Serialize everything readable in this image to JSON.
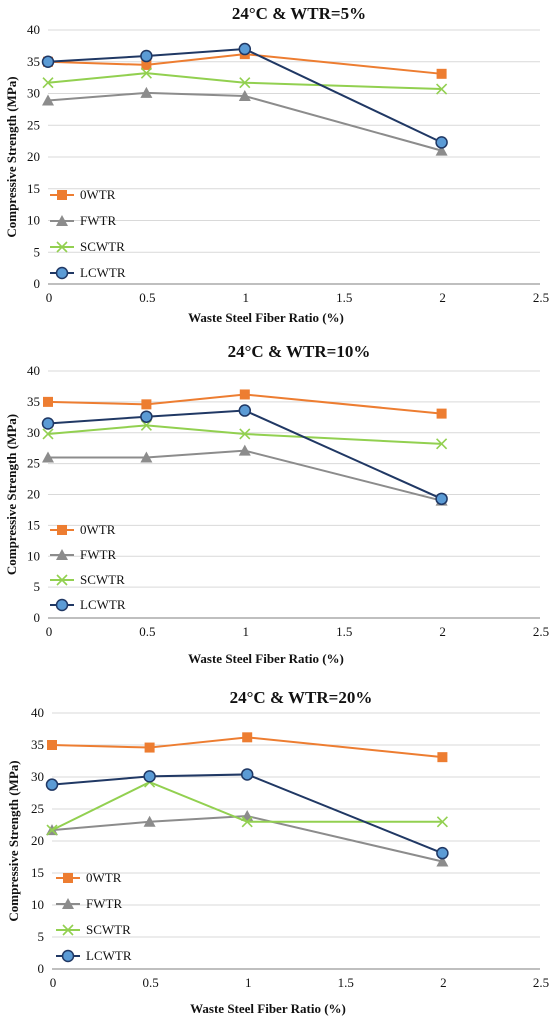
{
  "colors": {
    "0WTR": "#ED7D31",
    "FWTR": "#8C8C8C",
    "SCWTR": "#92D050",
    "LCWTR": "#203864",
    "LCWTR_fill": "#5B9BD5",
    "grid": "#D9D9D9",
    "axis": "#7F7F7F"
  },
  "chart_data": [
    {
      "type": "line",
      "title": "24°C & WTR=5%",
      "xlabel": "Waste Steel Fiber Ratio (%)",
      "ylabel": "Compressive Strength (MPa)",
      "xlim": [
        0,
        2.5
      ],
      "ylim": [
        0,
        40
      ],
      "xticks": [
        "0",
        "0.5",
        "1",
        "1.5",
        "2",
        "2.5"
      ],
      "yticks": [
        "0",
        "5",
        "10",
        "15",
        "20",
        "25",
        "30",
        "35",
        "40"
      ],
      "grid": "horizontal",
      "legend_position": "left-lower",
      "x": [
        0,
        0.5,
        1,
        2
      ],
      "series": [
        {
          "name": "0WTR",
          "marker": "square",
          "values": [
            35.0,
            34.5,
            36.2,
            33.1
          ]
        },
        {
          "name": "FWTR",
          "marker": "triangle",
          "values": [
            28.9,
            30.1,
            29.6,
            21.0
          ]
        },
        {
          "name": "SCWTR",
          "marker": "x",
          "values": [
            31.7,
            33.2,
            31.7,
            30.7
          ]
        },
        {
          "name": "LCWTR",
          "marker": "circle",
          "values": [
            35.0,
            35.9,
            37.0,
            22.3
          ]
        }
      ]
    },
    {
      "type": "line",
      "title": "24°C & WTR=10%",
      "xlabel": "Waste Steel Fiber Ratio (%)",
      "ylabel": "Compressive Strength (MPa)",
      "xlim": [
        0,
        2.5
      ],
      "ylim": [
        0,
        40
      ],
      "xticks": [
        "0",
        "0.5",
        "1",
        "1.5",
        "2",
        "2.5"
      ],
      "yticks": [
        "0",
        "5",
        "10",
        "15",
        "20",
        "25",
        "30",
        "35",
        "40"
      ],
      "grid": "horizontal",
      "legend_position": "left-lower",
      "x": [
        0,
        0.5,
        1,
        2
      ],
      "series": [
        {
          "name": "0WTR",
          "marker": "square",
          "values": [
            35.0,
            34.6,
            36.2,
            33.1
          ]
        },
        {
          "name": "FWTR",
          "marker": "triangle",
          "values": [
            26.0,
            26.0,
            27.1,
            19.0
          ]
        },
        {
          "name": "SCWTR",
          "marker": "x",
          "values": [
            29.8,
            31.2,
            29.8,
            28.2
          ]
        },
        {
          "name": "LCWTR",
          "marker": "circle",
          "values": [
            31.5,
            32.6,
            33.6,
            19.3
          ]
        }
      ]
    },
    {
      "type": "line",
      "title": "24°C & WTR=20%",
      "xlabel": "Waste Steel Fiber Ratio (%)",
      "ylabel": "Compressive Strength (MPa)",
      "xlim": [
        0,
        2.5
      ],
      "ylim": [
        0,
        40
      ],
      "xticks": [
        "0",
        "0.5",
        "1",
        "1.5",
        "2",
        "2.5"
      ],
      "yticks": [
        "0",
        "5",
        "10",
        "15",
        "20",
        "25",
        "30",
        "35",
        "40"
      ],
      "grid": "horizontal",
      "legend_position": "left-lower",
      "x": [
        0,
        0.5,
        1,
        2
      ],
      "series": [
        {
          "name": "0WTR",
          "marker": "square",
          "values": [
            35.0,
            34.6,
            36.2,
            33.1
          ]
        },
        {
          "name": "FWTR",
          "marker": "triangle",
          "values": [
            21.7,
            23.0,
            23.9,
            16.8
          ]
        },
        {
          "name": "SCWTR",
          "marker": "x",
          "values": [
            21.7,
            29.2,
            23.0,
            23.0
          ]
        },
        {
          "name": "LCWTR",
          "marker": "circle",
          "values": [
            28.8,
            30.1,
            30.4,
            18.1
          ]
        }
      ]
    }
  ]
}
